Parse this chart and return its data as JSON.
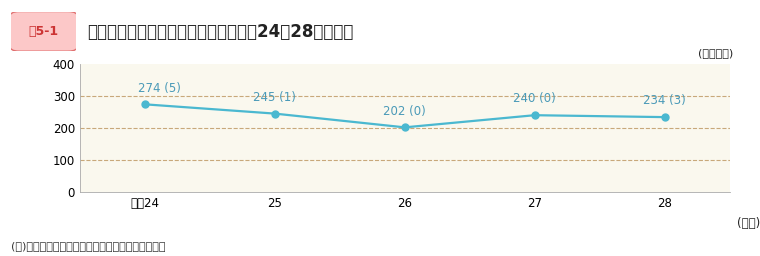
{
  "title": "死傷者数の推移【休業１日以上（平成24～28年度）】",
  "title_label": "図5-1",
  "unit_label": "(単位：人)",
  "xlabel": "(年度)",
  "note": "(注)　（　）内の数字は、死亡者数で内数である。",
  "x_values": [
    0,
    1,
    2,
    3,
    4
  ],
  "x_labels": [
    "平成24",
    "25",
    "26",
    "27",
    "28"
  ],
  "y_values": [
    274,
    245,
    202,
    240,
    234
  ],
  "y_labels": [
    "274 (5)",
    "245 (1)",
    "202 (0)",
    "240 (0)",
    "234 (3)"
  ],
  "ylim": [
    0,
    400
  ],
  "yticks": [
    0,
    100,
    200,
    300,
    400
  ],
  "line_color": "#4ab8d0",
  "marker_color": "#4ab8d0",
  "grid_color": "#c8a87a",
  "plot_bg_color": "#faf8ee",
  "border_color": "#aaaaaa",
  "label_color": "#4a9ab8",
  "title_box_bg": "#f8b4b4",
  "title_box_text_color": "#cc3333",
  "title_box_border": "#e07070",
  "title_text_color": "#222222",
  "note_color": "#333333",
  "font_size_label": 8.5,
  "font_size_title": 12,
  "font_size_axis": 8.5,
  "font_size_unit": 8,
  "font_size_note": 8
}
